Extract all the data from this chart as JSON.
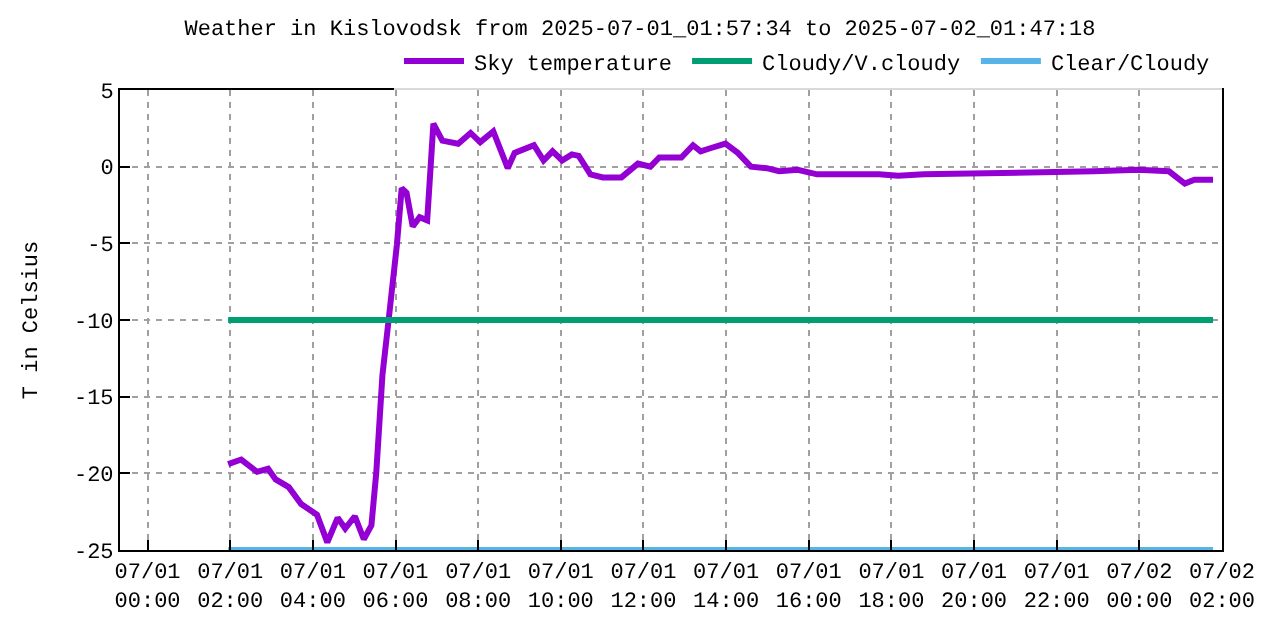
{
  "chart_data": {
    "type": "line",
    "title": "Weather in Kislovodsk from 2025-07-01_01:57:34 to 2025-07-02_01:47:18",
    "ylabel": "T in Celsius",
    "xlim": [
      "2025-06-30T23:20",
      "2025-07-02T02:00"
    ],
    "xticks": [
      {
        "value": "2025-07-01T00:00",
        "label": "07/01\n00:00"
      },
      {
        "value": "2025-07-01T02:00",
        "label": "07/01\n02:00"
      },
      {
        "value": "2025-07-01T04:00",
        "label": "07/01\n04:00"
      },
      {
        "value": "2025-07-01T06:00",
        "label": "07/01\n06:00"
      },
      {
        "value": "2025-07-01T08:00",
        "label": "07/01\n08:00"
      },
      {
        "value": "2025-07-01T10:00",
        "label": "07/01\n10:00"
      },
      {
        "value": "2025-07-01T12:00",
        "label": "07/01\n12:00"
      },
      {
        "value": "2025-07-01T14:00",
        "label": "07/01\n14:00"
      },
      {
        "value": "2025-07-01T16:00",
        "label": "07/01\n16:00"
      },
      {
        "value": "2025-07-01T18:00",
        "label": "07/01\n18:00"
      },
      {
        "value": "2025-07-01T20:00",
        "label": "07/01\n20:00"
      },
      {
        "value": "2025-07-01T22:00",
        "label": "07/01\n22:00"
      },
      {
        "value": "2025-07-02T00:00",
        "label": "07/02\n00:00"
      },
      {
        "value": "2025-07-02T02:00",
        "label": "07/02\n02:00"
      }
    ],
    "ylim": [
      -25,
      5
    ],
    "yticks": [
      -25,
      -20,
      -15,
      -10,
      -5,
      0,
      5
    ],
    "grid": true,
    "legend": "top",
    "line_style": "solid",
    "marker": "none",
    "series": [
      {
        "name": "Sky temperature",
        "color": "#9400d3",
        "x": [
          "2025-07-01T01:57",
          "2025-07-01T02:16",
          "2025-07-01T02:39",
          "2025-07-01T02:55",
          "2025-07-01T03:06",
          "2025-07-01T03:25",
          "2025-07-01T03:43",
          "2025-07-01T04:06",
          "2025-07-01T04:21",
          "2025-07-01T04:36",
          "2025-07-01T04:47",
          "2025-07-01T05:01",
          "2025-07-01T05:14",
          "2025-07-01T05:25",
          "2025-07-01T05:32",
          "2025-07-01T05:41",
          "2025-07-01T05:50",
          "2025-07-01T06:02",
          "2025-07-01T06:09",
          "2025-07-01T06:16",
          "2025-07-01T06:25",
          "2025-07-01T06:35",
          "2025-07-01T06:46",
          "2025-07-01T06:55",
          "2025-07-01T07:08",
          "2025-07-01T07:31",
          "2025-07-01T07:49",
          "2025-07-01T08:03",
          "2025-07-01T08:22",
          "2025-07-01T08:43",
          "2025-07-01T08:53",
          "2025-07-01T09:21",
          "2025-07-01T09:35",
          "2025-07-01T09:48",
          "2025-07-01T10:02",
          "2025-07-01T10:16",
          "2025-07-01T10:26",
          "2025-07-01T10:43",
          "2025-07-01T11:01",
          "2025-07-01T11:28",
          "2025-07-01T11:52",
          "2025-07-01T12:10",
          "2025-07-01T12:23",
          "2025-07-01T12:55",
          "2025-07-01T13:12",
          "2025-07-01T13:23",
          "2025-07-01T13:37",
          "2025-07-01T13:59",
          "2025-07-01T14:17",
          "2025-07-01T14:36",
          "2025-07-01T14:59",
          "2025-07-01T15:17",
          "2025-07-01T15:44",
          "2025-07-01T16:12",
          "2025-07-01T17:42",
          "2025-07-01T18:10",
          "2025-07-01T18:47",
          "2025-07-01T22:54",
          "2025-07-01T23:58",
          "2025-07-02T00:43",
          "2025-07-02T01:06",
          "2025-07-02T01:20",
          "2025-07-02T01:47"
        ],
        "values": [
          -19.4,
          -19.1,
          -19.9,
          -19.7,
          -20.4,
          -20.9,
          -22.0,
          -22.7,
          -24.5,
          -22.9,
          -23.6,
          -22.8,
          -24.3,
          -23.4,
          -20.0,
          -13.6,
          -10.0,
          -5.1,
          -1.4,
          -1.7,
          -3.9,
          -3.3,
          -3.5,
          2.8,
          1.7,
          1.5,
          2.2,
          1.6,
          2.3,
          -0.1,
          0.9,
          1.4,
          0.4,
          1.0,
          0.4,
          0.8,
          0.7,
          -0.5,
          -0.7,
          -0.7,
          0.2,
          0.0,
          0.6,
          0.6,
          1.4,
          1.0,
          1.2,
          1.5,
          0.9,
          0.0,
          -0.1,
          -0.3,
          -0.2,
          -0.5,
          -0.5,
          -0.6,
          -0.5,
          -0.3,
          -0.2,
          -0.3,
          -1.1,
          -0.85,
          -0.85
        ]
      },
      {
        "name": "Cloudy/V.cloudy",
        "color": "#009e73",
        "x": [
          "2025-07-01T01:57",
          "2025-07-02T01:47"
        ],
        "values": [
          -10,
          -10
        ]
      },
      {
        "name": "Clear/Cloudy",
        "color": "#56b4e9",
        "x": [
          "2025-07-01T01:57",
          "2025-07-02T01:47"
        ],
        "values": [
          -25,
          -25
        ]
      }
    ]
  }
}
